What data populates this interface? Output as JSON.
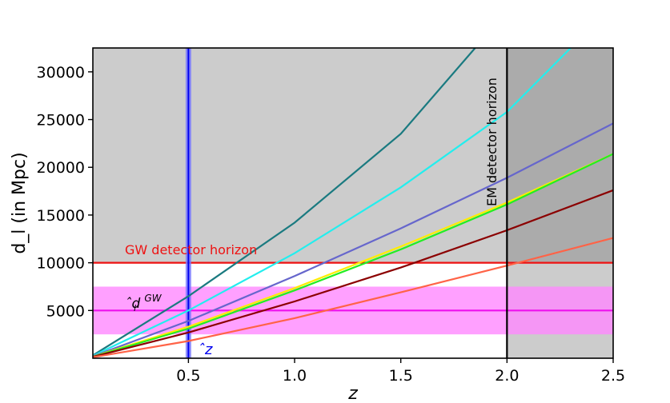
{
  "chart_data": {
    "type": "line",
    "title": "",
    "xlabel": "z",
    "ylabel": "d_l (in Mpc)",
    "xlim": [
      0.05,
      2.5
    ],
    "ylim": [
      0,
      32500
    ],
    "xticks": [
      0.5,
      1.0,
      1.5,
      2.0,
      2.5
    ],
    "xtick_labels": [
      "0.5",
      "1.0",
      "1.5",
      "2.0",
      "2.5"
    ],
    "yticks": [
      5000,
      10000,
      15000,
      20000,
      25000,
      30000
    ],
    "ytick_labels": [
      "5000",
      "10000",
      "15000",
      "20000",
      "25000",
      "30000"
    ],
    "grid": false,
    "series": [
      {
        "color": "#1a7a80",
        "x": [
          0.05,
          0.5,
          1.0,
          1.5,
          1.85
        ],
        "y": [
          300,
          6500,
          14200,
          23500,
          32500
        ]
      },
      {
        "color": "#22eeee",
        "x": [
          0.05,
          0.5,
          1.0,
          1.5,
          2.0,
          2.3
        ],
        "y": [
          250,
          5000,
          11000,
          17900,
          25800,
          32500
        ]
      },
      {
        "color": "#6666cc",
        "x": [
          0.05,
          0.5,
          1.0,
          1.5,
          2.0,
          2.5
        ],
        "y": [
          200,
          3900,
          8600,
          13600,
          18900,
          24600
        ]
      },
      {
        "color": "#ffee00",
        "x": [
          0.05,
          0.5,
          1.0,
          1.5,
          2.0,
          2.5
        ],
        "y": [
          170,
          3300,
          7350,
          11700,
          16300,
          21400
        ]
      },
      {
        "color": "#22ee22",
        "x": [
          0.05,
          0.5,
          1.0,
          1.5,
          2.0,
          2.5
        ],
        "y": [
          160,
          3100,
          7100,
          11400,
          16100,
          21400
        ]
      },
      {
        "color": "#8b0000",
        "x": [
          0.05,
          0.5,
          1.0,
          1.5,
          2.0,
          2.5
        ],
        "y": [
          140,
          2700,
          5950,
          9500,
          13400,
          17600
        ]
      },
      {
        "color": "#ff6347",
        "x": [
          0.05,
          0.5,
          1.0,
          1.5,
          2.0,
          2.5
        ],
        "y": [
          100,
          1800,
          4200,
          6900,
          9700,
          12600
        ]
      }
    ],
    "shaded_regions": [
      {
        "name": "above GW horizon",
        "x": [
          0.05,
          2.5
        ],
        "y": [
          10000,
          32500
        ],
        "color": "#cccccc"
      },
      {
        "name": "beyond EM horizon",
        "x": [
          2.0,
          2.5
        ],
        "y": [
          0,
          32500
        ],
        "color": "#cccccc"
      },
      {
        "name": "d_l^GW band",
        "x": [
          0.05,
          2.5
        ],
        "y": [
          2500,
          7500
        ],
        "color": "#ff88ff"
      }
    ],
    "reference_lines": {
      "gw_horizon": {
        "y": 10000,
        "color": "#ee1111",
        "label": "GW detector horizon"
      },
      "em_horizon": {
        "x": 2.0,
        "color": "#000000",
        "label": "EM detector horizon"
      },
      "dl_gw": {
        "y": 5000,
        "color": "#ee11ee",
        "label": "ˆd",
        "sub": "l",
        "sup": "GW"
      },
      "z_hat": {
        "x": 0.5,
        "color": "#0000ee",
        "label": "ˆz"
      }
    }
  }
}
